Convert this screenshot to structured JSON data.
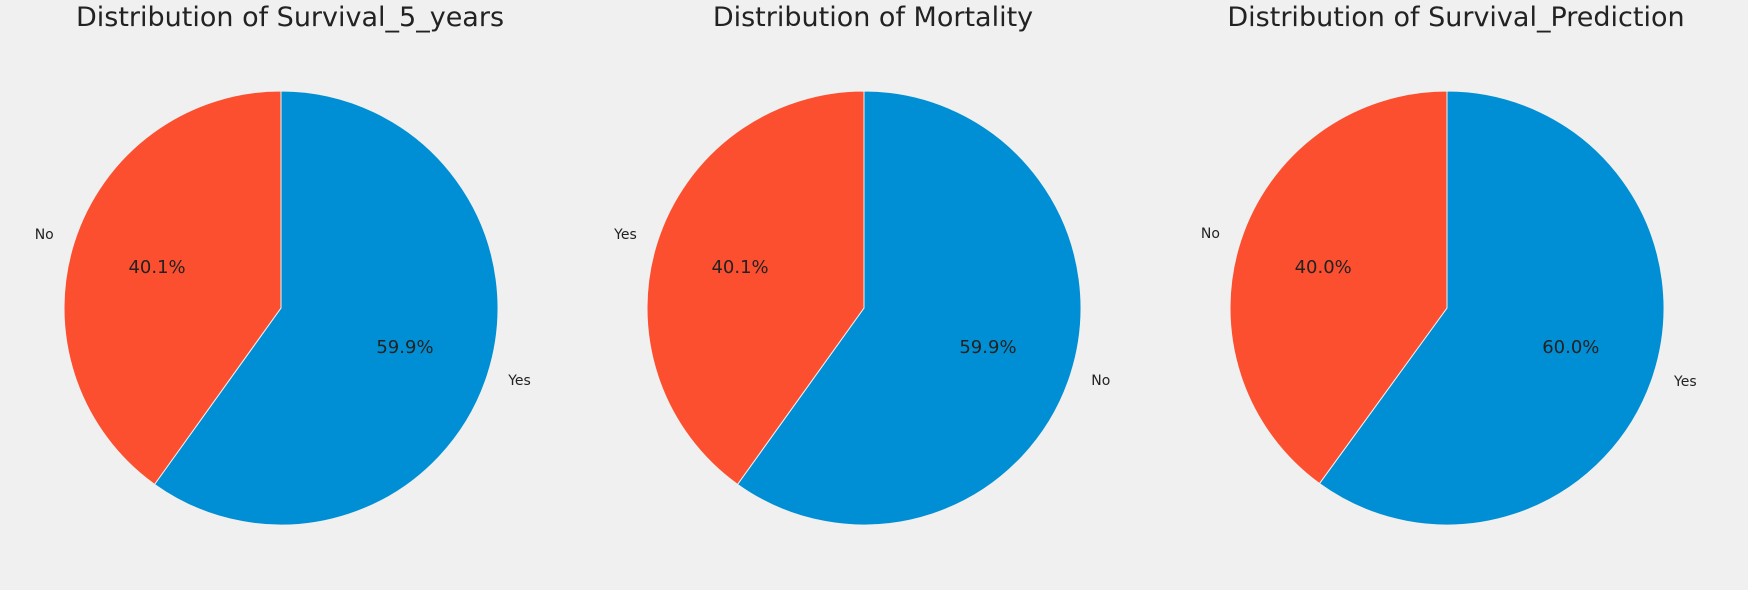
{
  "chart_data": [
    {
      "type": "pie",
      "title": "Distribution of Survival_5_years",
      "labels": [
        "Yes",
        "No"
      ],
      "values": [
        59.9,
        40.1
      ],
      "percent_labels": [
        "59.9%",
        "40.1%"
      ],
      "colors": [
        "#008fd5",
        "#fc4f30"
      ]
    },
    {
      "type": "pie",
      "title": "Distribution of Mortality",
      "labels": [
        "No",
        "Yes"
      ],
      "values": [
        59.9,
        40.1
      ],
      "percent_labels": [
        "59.9%",
        "40.1%"
      ],
      "colors": [
        "#008fd5",
        "#fc4f30"
      ]
    },
    {
      "type": "pie",
      "title": "Distribution of Survival_Prediction",
      "labels": [
        "Yes",
        "No"
      ],
      "values": [
        60.0,
        40.0
      ],
      "percent_labels": [
        "60.0%",
        "40.0%"
      ],
      "colors": [
        "#008fd5",
        "#fc4f30"
      ]
    }
  ]
}
